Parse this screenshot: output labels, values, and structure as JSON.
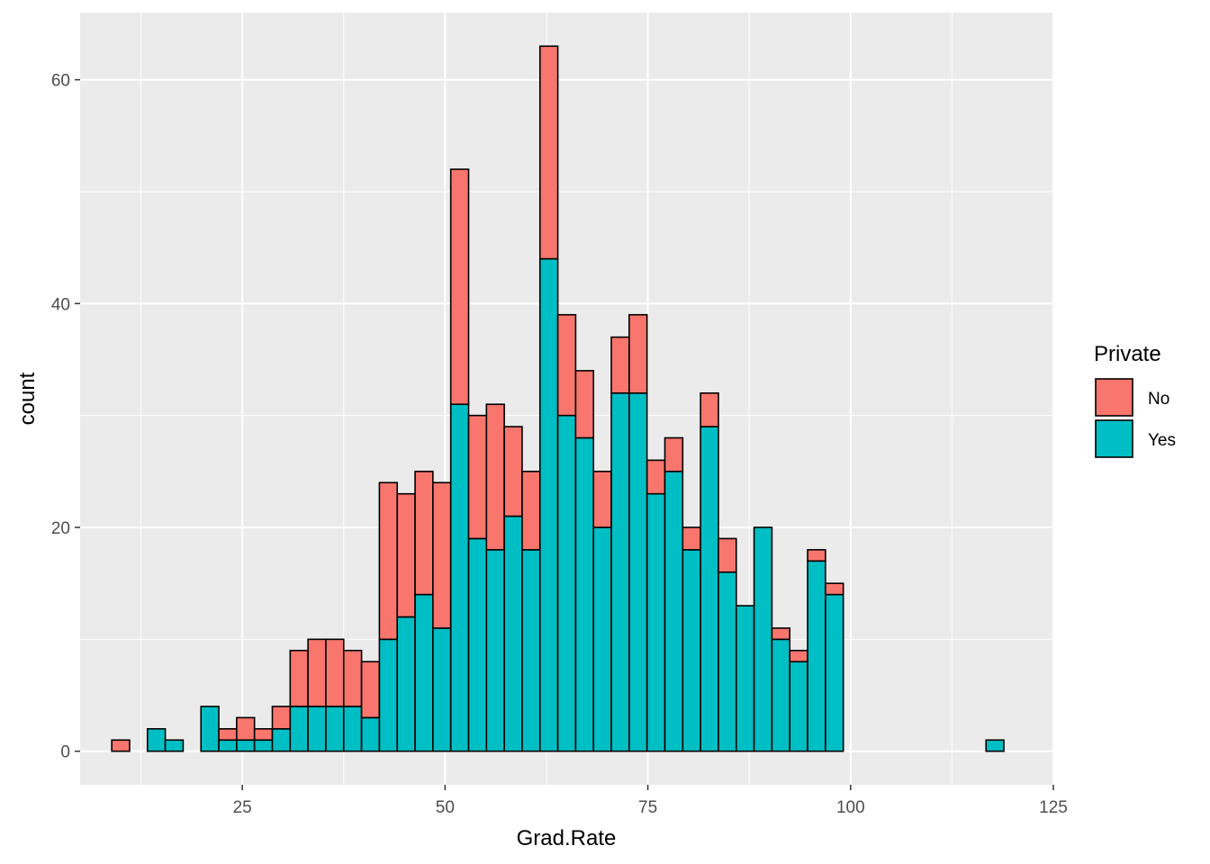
{
  "chart_data": {
    "type": "bar",
    "stacked": true,
    "xlabel": "Grad.Rate",
    "ylabel": "count",
    "xlim": [
      5,
      125
    ],
    "ylim": [
      -3,
      66
    ],
    "x_ticks": [
      25,
      50,
      75,
      100,
      125
    ],
    "y_ticks": [
      0,
      20,
      40,
      60
    ],
    "bin_width": 2.2,
    "x": [
      10.0,
      12.2,
      14.4,
      16.6,
      18.8,
      21.0,
      23.2,
      25.4,
      27.6,
      29.8,
      32.0,
      34.2,
      36.4,
      38.6,
      40.8,
      43.0,
      45.2,
      47.4,
      49.6,
      51.8,
      54.0,
      56.2,
      58.4,
      60.6,
      62.8,
      65.0,
      67.2,
      69.4,
      71.6,
      73.8,
      76.0,
      78.2,
      80.4,
      82.6,
      84.8,
      87.0,
      89.2,
      91.4,
      93.6,
      95.8,
      98.0,
      100.2,
      102.4,
      104.6,
      106.8,
      109.0,
      111.2,
      113.4,
      115.6,
      117.8
    ],
    "series": [
      {
        "name": "No",
        "color": "#F8766D",
        "values": [
          1,
          0,
          0,
          0,
          0,
          0,
          1,
          2,
          1,
          2,
          5,
          6,
          6,
          5,
          5,
          14,
          11,
          11,
          13,
          21,
          11,
          13,
          8,
          7,
          19,
          9,
          6,
          5,
          5,
          7,
          3,
          3,
          2,
          3,
          3,
          0,
          0,
          1,
          1,
          1,
          1,
          0,
          0,
          0,
          0,
          0,
          0,
          0,
          0,
          0
        ]
      },
      {
        "name": "Yes",
        "color": "#00BFC4",
        "values": [
          0,
          0,
          2,
          1,
          0,
          4,
          1,
          1,
          1,
          2,
          4,
          4,
          4,
          4,
          3,
          10,
          12,
          14,
          11,
          31,
          19,
          18,
          21,
          18,
          44,
          30,
          28,
          20,
          32,
          32,
          23,
          25,
          18,
          29,
          16,
          13,
          20,
          10,
          8,
          17,
          14,
          0,
          0,
          0,
          0,
          0,
          0,
          0,
          0,
          1
        ]
      }
    ],
    "legend": {
      "title": "Private",
      "position": "right"
    },
    "grid": true
  }
}
